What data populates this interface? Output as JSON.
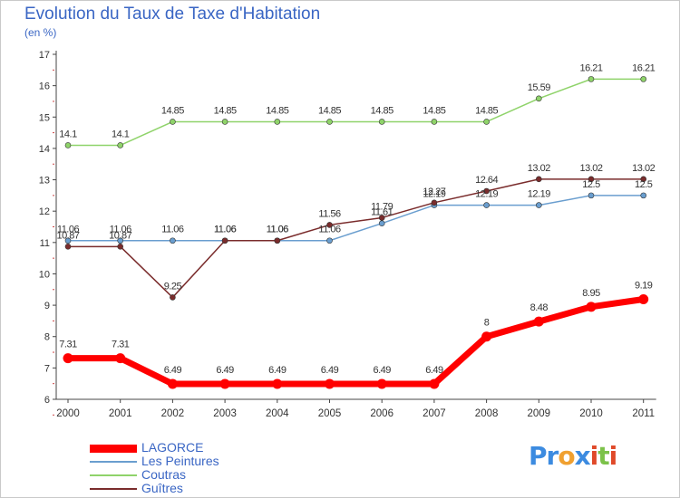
{
  "title": "Evolution du Taux de Taxe d'Habitation",
  "subtitle": "(en %)",
  "logo": {
    "letters": [
      "P",
      "r",
      "o",
      "x",
      "i",
      "t",
      "i"
    ],
    "colors": [
      "#3c8be0",
      "#3c8be0",
      "#f0a030",
      "#3c8be0",
      "#e04a2a",
      "#7cc24a",
      "#e04a2a"
    ]
  },
  "chart_data": {
    "type": "line",
    "x": [
      "2000",
      "2001",
      "2002",
      "2003",
      "2004",
      "2005",
      "2006",
      "2007",
      "2008",
      "2009",
      "2010",
      "2011"
    ],
    "ylim": [
      6,
      17
    ],
    "yticks": [
      "6",
      "7",
      "8",
      "9",
      "10",
      "11",
      "12",
      "13",
      "14",
      "15",
      "16",
      "17"
    ],
    "grid": false,
    "legend_position": "bottom-left",
    "series": [
      {
        "name": "LAGORCE",
        "color": "#ff0000",
        "width": 7,
        "marker": 11,
        "values": [
          7.31,
          7.31,
          6.49,
          6.49,
          6.49,
          6.49,
          6.49,
          6.49,
          8,
          8.48,
          8.95,
          9.19
        ],
        "labels": [
          "7.31",
          "7.31",
          "6.49",
          "6.49",
          "6.49",
          "6.49",
          "6.49",
          "6.49",
          "8",
          "8.48",
          "8.95",
          "9.19"
        ]
      },
      {
        "name": "Les Peintures",
        "color": "#6a9ecf",
        "width": 1.5,
        "marker": 3,
        "values": [
          11.06,
          11.06,
          11.06,
          11.06,
          11.06,
          11.06,
          11.61,
          12.19,
          12.19,
          12.19,
          12.5,
          12.5
        ],
        "labels": [
          "11.06",
          "11.06",
          "11.06",
          "11.06",
          "11.06",
          "11.06",
          "11.61",
          "12.19",
          "12.19",
          "12.19",
          "12.5",
          "12.5"
        ]
      },
      {
        "name": "Coutras",
        "color": "#8fd36a",
        "width": 1.5,
        "marker": 3,
        "values": [
          14.1,
          14.1,
          14.85,
          14.85,
          14.85,
          14.85,
          14.85,
          14.85,
          14.85,
          15.59,
          16.21,
          16.21
        ],
        "labels": [
          "14.1",
          "14.1",
          "14.85",
          "14.85",
          "14.85",
          "14.85",
          "14.85",
          "14.85",
          "14.85",
          "15.59",
          "16.21",
          "16.21"
        ]
      },
      {
        "name": "Guîtres",
        "color": "#7a2c2c",
        "width": 1.5,
        "marker": 3,
        "values": [
          10.87,
          10.87,
          9.25,
          11.06,
          11.06,
          11.56,
          11.79,
          12.27,
          12.64,
          13.02,
          13.02,
          13.02
        ],
        "labels": [
          "10.87",
          "10.87",
          "9.25",
          "11.06",
          "11.06",
          "11.56",
          "11.79",
          "12.27",
          "12.64",
          "13.02",
          "13.02",
          "13.02"
        ]
      }
    ]
  }
}
